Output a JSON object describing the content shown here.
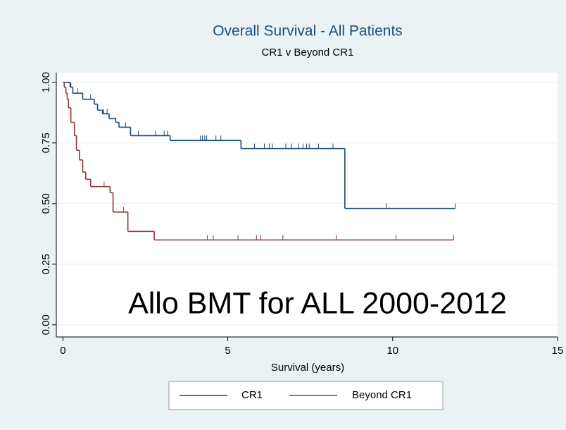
{
  "chart_data": {
    "type": "step",
    "title": "Overall Survival - All Patients",
    "subtitle": "CR1 v Beyond CR1",
    "x_label": "Survival (years)",
    "annotation": "Allo BMT for ALL 2000-2012",
    "xlim": [
      -0.2,
      15
    ],
    "xticks": [
      0,
      5,
      10,
      15
    ],
    "ylim": [
      -0.05,
      1.04
    ],
    "yticks": [
      {
        "value": 0,
        "label": "0.00"
      },
      {
        "value": 0.25,
        "label": "0.25"
      },
      {
        "value": 0.5,
        "label": "0.50"
      },
      {
        "value": 0.75,
        "label": "0.75"
      },
      {
        "value": 1,
        "label": "1.00"
      }
    ],
    "grid": true,
    "legend": "bottom",
    "series": [
      {
        "name": "CR1",
        "color": "#1a476f",
        "x": [
          0,
          0.22,
          0.3,
          0.6,
          0.95,
          1.05,
          1.2,
          1.4,
          1.6,
          1.7,
          2.05,
          3.25,
          5.4,
          8.55,
          11.9
        ],
        "values": [
          1.0,
          0.98,
          0.955,
          0.93,
          0.91,
          0.885,
          0.87,
          0.85,
          0.835,
          0.815,
          0.78,
          0.76,
          0.727,
          0.48,
          0.48
        ],
        "censored": [
          0.24,
          0.45,
          0.6,
          0.84,
          1.23,
          1.34,
          1.6,
          1.9,
          2.29,
          2.81,
          3.07,
          3.17,
          4.17,
          4.23,
          4.3,
          4.36,
          4.64,
          4.79,
          5.81,
          6.11,
          6.26,
          6.35,
          6.76,
          6.93,
          7.15,
          7.28,
          7.39,
          7.47,
          7.75,
          8.19,
          9.81,
          11.9
        ]
      },
      {
        "name": "Beyond CR1",
        "color": "#90353b",
        "x": [
          0,
          0.04,
          0.09,
          0.13,
          0.17,
          0.24,
          0.35,
          0.41,
          0.5,
          0.6,
          0.69,
          0.84,
          1.43,
          1.52,
          1.97,
          2.77,
          11.85
        ],
        "values": [
          1.0,
          0.98,
          0.955,
          0.93,
          0.895,
          0.835,
          0.78,
          0.72,
          0.68,
          0.63,
          0.6,
          0.57,
          0.545,
          0.465,
          0.385,
          0.35,
          0.35
        ],
        "censored": [
          1.25,
          1.84,
          4.38,
          4.56,
          5.31,
          5.87,
          6.0,
          6.67,
          8.29,
          10.1,
          11.85
        ]
      }
    ]
  }
}
